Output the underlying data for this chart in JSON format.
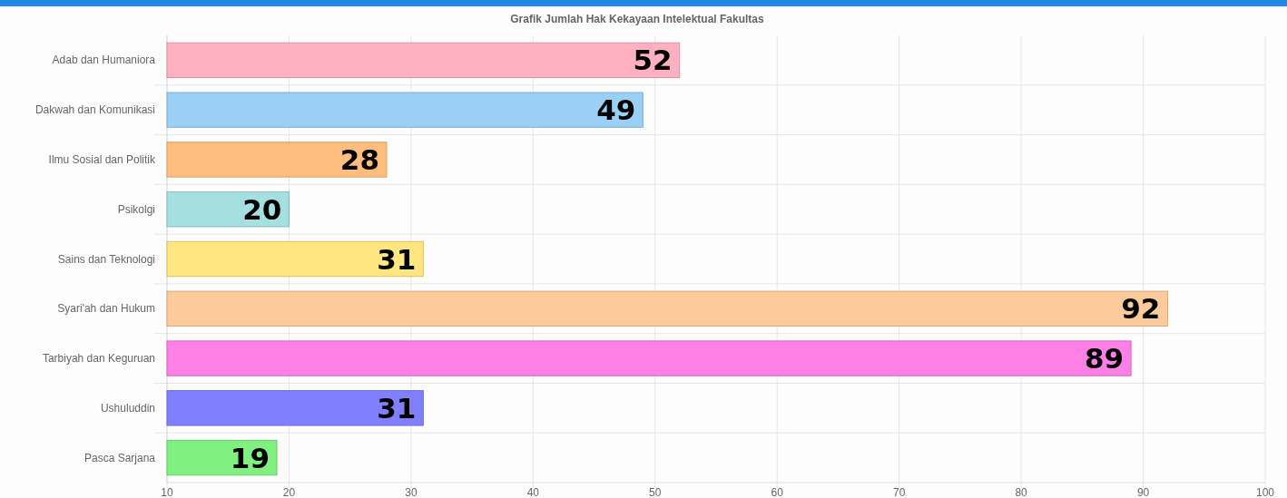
{
  "chart_data": {
    "type": "bar",
    "orientation": "horizontal",
    "title": "Grafik Jumlah Hak Kekayaan Intelektual Fakultas",
    "categories": [
      "Adab dan Humaniora",
      "Dakwah dan Komunikasi",
      "Ilmu Sosial dan Politik",
      "Psikolgi",
      "Sains dan Teknologi",
      "Syari'ah dan Hukum",
      "Tarbiyah dan Keguruan",
      "Ushuluddin",
      "Pasca Sarjana"
    ],
    "values": [
      52,
      49,
      28,
      20,
      31,
      92,
      89,
      31,
      19
    ],
    "colors": [
      "#ffb1c1",
      "#9ad0f5",
      "#ffbe80",
      "#a5dfdf",
      "#ffe680",
      "#fdcb9b",
      "#ff80e6",
      "#8080ff",
      "#80f080"
    ],
    "xlim": [
      10,
      100
    ],
    "xticks": [
      10,
      20,
      30,
      40,
      50,
      60,
      70,
      80,
      90,
      100
    ],
    "grid": true,
    "data_labels": true
  }
}
